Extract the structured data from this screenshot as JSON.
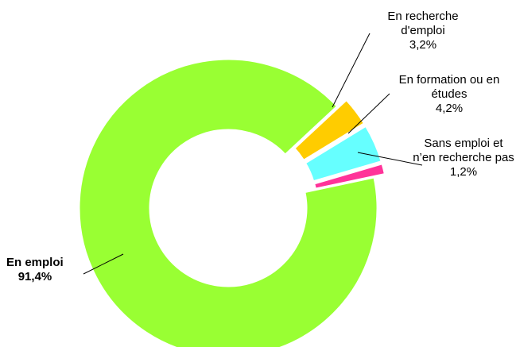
{
  "chart_data": {
    "type": "donut",
    "categories": [
      "En emploi",
      "En recherche d'emploi",
      "En formation ou en études",
      "Sans emploi et n’en recherche pas"
    ],
    "values": [
      91.4,
      3.2,
      4.2,
      1.2
    ],
    "value_labels": [
      "91,4%",
      "3,2%",
      "4,2%",
      "1,2%"
    ],
    "colors": [
      "#99ff33",
      "#ffcc00",
      "#66ffff",
      "#ff3399"
    ]
  }
}
